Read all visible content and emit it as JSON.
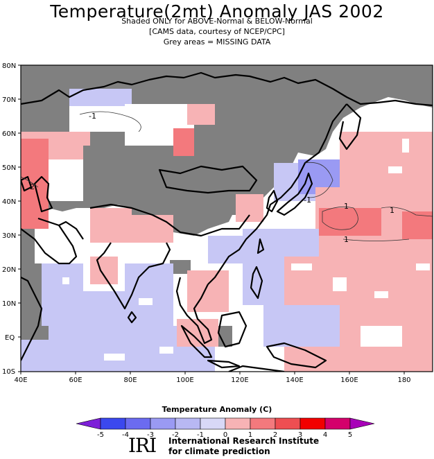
{
  "header": {
    "title": "Temperature(2mt) Anomaly JAS 2002",
    "line1": "Shaded ONLY for ABOVE-Normal & BELOW-Normal",
    "line2": "[CAMS data, courtesy of NCEP/CPC]",
    "line3": "Grey areas = MISSING DATA"
  },
  "map": {
    "lat_labels": [
      "80N",
      "70N",
      "60N",
      "50N",
      "40N",
      "30N",
      "20N",
      "10N",
      "EQ",
      "10S"
    ],
    "lon_labels": [
      "40E",
      "60E",
      "80E",
      "100E",
      "120E",
      "140E",
      "160E",
      "180"
    ],
    "contour_labels": [
      "-1",
      "2",
      "-1",
      "1",
      "1",
      "1"
    ],
    "missing_color": "#808080",
    "above_color": "#f7b3b5",
    "below_color": "#c7c7f5"
  },
  "colorbar": {
    "title": "Temperature  Anomaly (C)",
    "ticks": [
      "-5",
      "-4",
      "-3",
      "-2",
      "-1",
      "0",
      "1",
      "2",
      "3",
      "4",
      "5"
    ],
    "colors": [
      "#7d1fd8",
      "#3b48ee",
      "#6b6bf0",
      "#9a9af3",
      "#c7c7f5",
      "#f7b3b5",
      "#f3797d",
      "#ee4e52",
      "#f20000",
      "#d4006b",
      "#a800b8"
    ]
  },
  "footer": {
    "logo": "IRI",
    "name_line1": "International Research Institute",
    "name_line2": "for climate prediction"
  }
}
